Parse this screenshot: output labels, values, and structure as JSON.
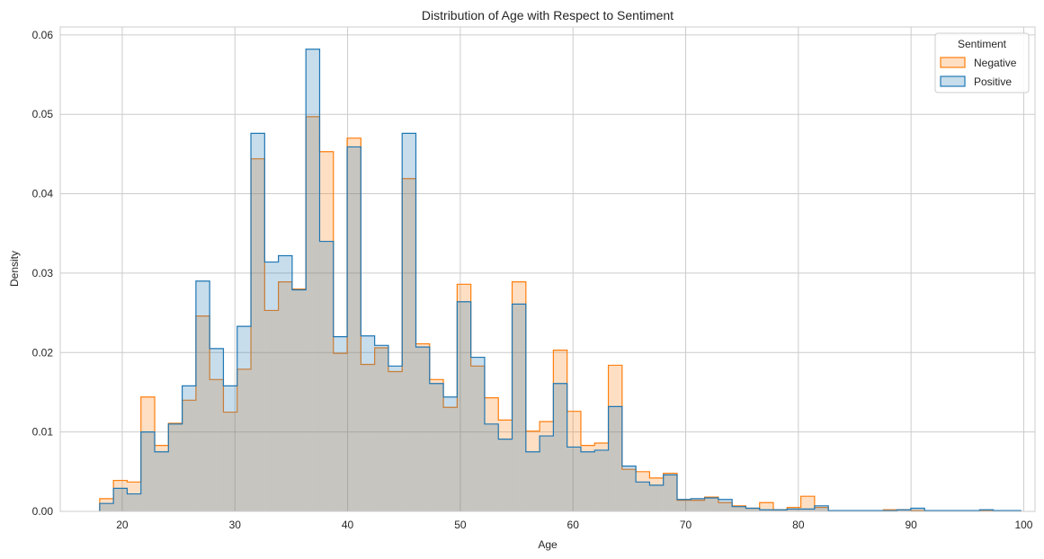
{
  "chart_data": {
    "type": "histogram",
    "title": "Distribution of Age with Respect to Sentiment",
    "xlabel": "Age",
    "ylabel": "Density",
    "xlim": [
      14.5,
      101
    ],
    "ylim": [
      0,
      0.061
    ],
    "xticks": [
      20,
      30,
      40,
      50,
      60,
      70,
      80,
      90,
      100
    ],
    "yticks": [
      0.0,
      0.01,
      0.02,
      0.03,
      0.04,
      0.05,
      0.06
    ],
    "ytick_labels": [
      "0.00",
      "0.01",
      "0.02",
      "0.03",
      "0.04",
      "0.05",
      "0.06"
    ],
    "grid": true,
    "legend": {
      "title": "Sentiment",
      "placement": "top-right"
    },
    "bin_start": 18,
    "bin_width": 1.22,
    "series": [
      {
        "name": "Negative",
        "color": "#ff7f0e",
        "fill": "#ffdbb8",
        "values": [
          0.0016,
          0.0039,
          0.0037,
          0.0144,
          0.0083,
          0.0111,
          0.014,
          0.0246,
          0.0166,
          0.0125,
          0.0179,
          0.0444,
          0.0253,
          0.0289,
          0.028,
          0.0497,
          0.0453,
          0.0199,
          0.047,
          0.0185,
          0.0206,
          0.0176,
          0.0419,
          0.0211,
          0.0166,
          0.0131,
          0.0286,
          0.0183,
          0.0143,
          0.0115,
          0.0289,
          0.0101,
          0.0113,
          0.0203,
          0.0126,
          0.0083,
          0.0086,
          0.0184,
          0.0053,
          0.005,
          0.0042,
          0.0048,
          0.0014,
          0.0014,
          0.0018,
          0.0011,
          0.0007,
          0.0004,
          0.0011,
          0.0002,
          0.0005,
          0.0019,
          0.0005,
          0.0001,
          0.0001,
          0.0001,
          0.0001,
          0.0002,
          0.0002,
          0.0001,
          0.0001,
          0.0001,
          0.0001,
          0.0001,
          0.0001,
          0.0001,
          0.0001
        ]
      },
      {
        "name": "Positive",
        "color": "#1f77b4",
        "fill": "#c2d8ea",
        "values": [
          0.001,
          0.0029,
          0.0022,
          0.01,
          0.0075,
          0.011,
          0.0158,
          0.029,
          0.0205,
          0.0158,
          0.0233,
          0.0476,
          0.0314,
          0.0322,
          0.0279,
          0.0582,
          0.034,
          0.022,
          0.0459,
          0.0221,
          0.0209,
          0.0183,
          0.0476,
          0.0207,
          0.0161,
          0.0144,
          0.0264,
          0.0194,
          0.011,
          0.0091,
          0.0261,
          0.0075,
          0.0095,
          0.0161,
          0.0081,
          0.0075,
          0.0077,
          0.0132,
          0.0057,
          0.0037,
          0.0033,
          0.0046,
          0.0015,
          0.0016,
          0.0017,
          0.0015,
          0.0006,
          0.0004,
          0.0002,
          0.0002,
          0.0003,
          0.0003,
          0.0007,
          0.0001,
          0.0001,
          0.0001,
          0.0001,
          0.0001,
          0.0002,
          0.0004,
          0.0001,
          0.0001,
          0.0001,
          0.0001,
          0.0002,
          0.0001,
          0.0001
        ]
      }
    ]
  }
}
